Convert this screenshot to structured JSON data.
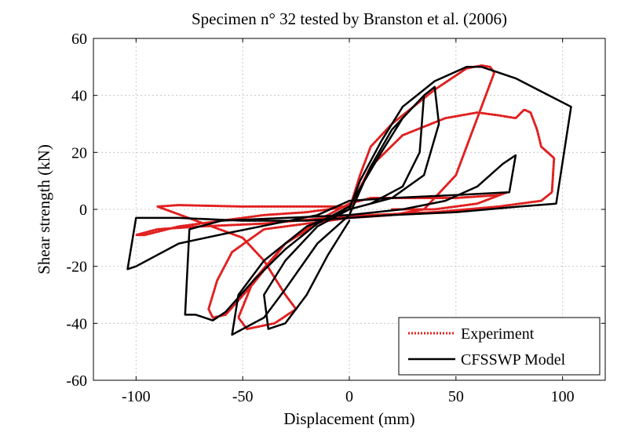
{
  "chart_data": {
    "type": "line",
    "title": "Specimen n° 32 tested by Branston et al. (2006)",
    "xlabel": "Displacement (mm)",
    "ylabel": "Shear strength (kN)",
    "xlim": [
      -120,
      120
    ],
    "ylim": [
      -60,
      60
    ],
    "xticks": [
      -100,
      -50,
      0,
      50,
      100
    ],
    "yticks": [
      -60,
      -40,
      -20,
      0,
      20,
      40,
      60
    ],
    "xtick_labels": [
      "-100",
      "-50",
      "0",
      "50",
      "100"
    ],
    "ytick_labels": [
      "-60",
      "-40",
      "-20",
      "0",
      "20",
      "40",
      "60"
    ],
    "grid": true,
    "legend": {
      "position": "bottom-right",
      "entries": [
        "Experiment",
        "CFSSWP Model"
      ]
    },
    "series": [
      {
        "name": "Experiment",
        "color": "#e02020",
        "style": "dotted",
        "points": [
          [
            0,
            0
          ],
          [
            5,
            12
          ],
          [
            10,
            22
          ],
          [
            20,
            30
          ],
          [
            40,
            42
          ],
          [
            55,
            49.5
          ],
          [
            62,
            50.5
          ],
          [
            66,
            50
          ],
          [
            68,
            48
          ],
          [
            62,
            36
          ],
          [
            50,
            12
          ],
          [
            35,
            0
          ],
          [
            20,
            -2
          ],
          [
            0,
            -3
          ],
          [
            -20,
            -5
          ],
          [
            -40,
            -7
          ],
          [
            -55,
            -15
          ],
          [
            -62,
            -25
          ],
          [
            -66,
            -35
          ],
          [
            -64,
            -38
          ],
          [
            -58,
            -37
          ],
          [
            -45,
            -26
          ],
          [
            -30,
            -12
          ],
          [
            -15,
            -5
          ],
          [
            0,
            0
          ],
          [
            10,
            15
          ],
          [
            25,
            26
          ],
          [
            45,
            32
          ],
          [
            60,
            34
          ],
          [
            70,
            33
          ],
          [
            78,
            32
          ],
          [
            82,
            35
          ],
          [
            85,
            34
          ],
          [
            88,
            28
          ],
          [
            90,
            22
          ],
          [
            93,
            20
          ],
          [
            96,
            18
          ],
          [
            95,
            6
          ],
          [
            90,
            3
          ],
          [
            70,
            1
          ],
          [
            40,
            -1
          ],
          [
            10,
            -2
          ],
          [
            -10,
            -3
          ],
          [
            -40,
            -5
          ],
          [
            -70,
            -6
          ],
          [
            -90,
            -7
          ],
          [
            -100,
            -9
          ],
          [
            -96,
            -9
          ],
          [
            -80,
            -6
          ],
          [
            -60,
            -4
          ],
          [
            -40,
            -2
          ],
          [
            -20,
            -1
          ],
          [
            0,
            1
          ],
          [
            -20,
            1
          ],
          [
            -50,
            1
          ],
          [
            -80,
            1.5
          ],
          [
            -90,
            1
          ],
          [
            -50,
            -10
          ],
          [
            -40,
            -18
          ],
          [
            -30,
            -30
          ],
          [
            -25,
            -35
          ],
          [
            -35,
            -40
          ],
          [
            -48,
            -42
          ],
          [
            -52,
            -38
          ],
          [
            -45,
            -25
          ],
          [
            -30,
            -12
          ],
          [
            -15,
            -4
          ],
          [
            0,
            2
          ],
          [
            10,
            4
          ],
          [
            25,
            4
          ],
          [
            50,
            4
          ],
          [
            70,
            5
          ],
          [
            74,
            6
          ],
          [
            60,
            2
          ],
          [
            40,
            0
          ],
          [
            20,
            0
          ]
        ]
      },
      {
        "name": "CFSSWP Model",
        "color": "#000000",
        "style": "solid",
        "points": [
          [
            0,
            0
          ],
          [
            5,
            10
          ],
          [
            15,
            24
          ],
          [
            25,
            36
          ],
          [
            40,
            45
          ],
          [
            55,
            50
          ],
          [
            62,
            50
          ],
          [
            70,
            48
          ],
          [
            78,
            46
          ],
          [
            104,
            36
          ],
          [
            97,
            2
          ],
          [
            80,
            1
          ],
          [
            50,
            -1
          ],
          [
            20,
            -2
          ],
          [
            0,
            -3
          ],
          [
            -20,
            -4
          ],
          [
            -50,
            -4
          ],
          [
            -80,
            -3
          ],
          [
            -100,
            -3
          ],
          [
            -104,
            -21
          ],
          [
            -100,
            -20
          ],
          [
            -80,
            -12
          ],
          [
            -55,
            -8
          ],
          [
            -35,
            -5
          ],
          [
            -15,
            -2
          ],
          [
            0,
            3
          ],
          [
            20,
            4
          ],
          [
            50,
            5
          ],
          [
            75,
            6
          ],
          [
            78,
            19
          ],
          [
            72,
            16
          ],
          [
            60,
            8
          ],
          [
            45,
            3
          ],
          [
            25,
            0
          ],
          [
            0,
            -2
          ],
          [
            -30,
            -3
          ],
          [
            -60,
            -4
          ],
          [
            -75,
            -7
          ],
          [
            -77,
            -37
          ],
          [
            -72,
            -37
          ],
          [
            -64,
            -39
          ],
          [
            -58,
            -36
          ],
          [
            -45,
            -25
          ],
          [
            -30,
            -14
          ],
          [
            -15,
            -5
          ],
          [
            0,
            1
          ],
          [
            15,
            20
          ],
          [
            25,
            32
          ],
          [
            35,
            40
          ],
          [
            40,
            43
          ],
          [
            42,
            30
          ],
          [
            35,
            12
          ],
          [
            20,
            4
          ],
          [
            0,
            0
          ],
          [
            -20,
            -6
          ],
          [
            -40,
            -18
          ],
          [
            -52,
            -30
          ],
          [
            -55,
            -44
          ],
          [
            -50,
            -42
          ],
          [
            -40,
            -38
          ],
          [
            -30,
            -28
          ],
          [
            -15,
            -12
          ],
          [
            0,
            -2
          ],
          [
            10,
            15
          ],
          [
            20,
            28
          ],
          [
            30,
            36
          ],
          [
            35,
            40
          ],
          [
            33,
            20
          ],
          [
            25,
            8
          ],
          [
            10,
            2
          ],
          [
            0,
            0
          ],
          [
            -15,
            -6
          ],
          [
            -30,
            -18
          ],
          [
            -40,
            -30
          ],
          [
            -38,
            -42
          ],
          [
            -30,
            -40
          ],
          [
            -20,
            -30
          ],
          [
            -10,
            -16
          ],
          [
            0,
            -4
          ]
        ]
      }
    ]
  }
}
